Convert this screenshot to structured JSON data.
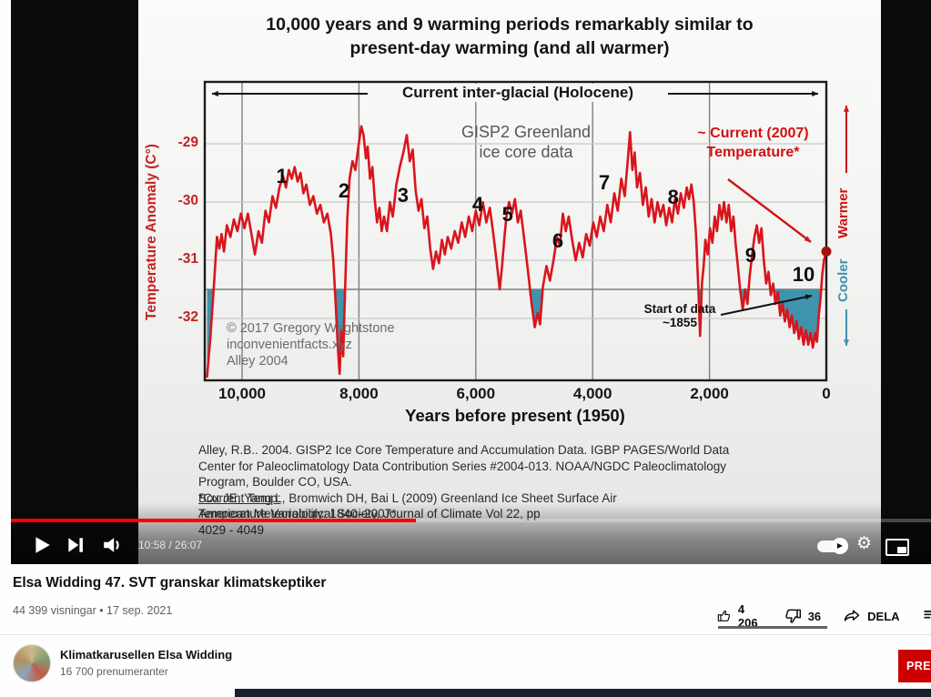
{
  "player": {
    "time_display": "10:58 / 26:07",
    "progress_percent": 44,
    "autoplay_on": true
  },
  "slide": {
    "title_line1": "10,000 years and 9 warming periods remarkably similar to",
    "title_line2": "present-day warming (and all warmer)",
    "holocene_label": "Current inter-glacial (Holocene)",
    "source_label_line1": "GISP2 Greenland",
    "source_label_line2": "ice core data",
    "current_temp_line1": "~ Current (2007)",
    "current_temp_line2": "Temperature*",
    "warmer_label": "Warmer",
    "cooler_label": "Cooler",
    "start_of_data_line1": "Start of data",
    "start_of_data_line2": "~1855",
    "copyright_lines": [
      "© 2017 Gregory Wrightstone",
      "inconvenientfacts.xyz",
      "Alley 2004"
    ],
    "citation_lines": [
      {
        "u": "",
        "t": "Alley, R.B.. 2004. GISP2 Ice Core Temperature and Accumulation Data. IGBP PAGES/World Data"
      },
      {
        "u": "",
        "t": "Center for Paleoclimatology Data Contribution Series #2004-013. NOAA/NGDC Paleoclimatology"
      },
      {
        "u": "",
        "t": "Program, Boulder CO, USA."
      },
      {
        "u": "*Current Temp:",
        "t": " Box JE, Yang L, Bromwich DH, Bai L (2009) Greenland Ice Sheet Surface Air"
      },
      {
        "u": "Temperature Variability: 1840–2007*.",
        "t": " American Meteorological Society, Journal of Climate Vol 22, pp"
      },
      {
        "u": "",
        "t": "4029 - 4049"
      }
    ]
  },
  "chart_data": {
    "type": "line",
    "title": "GISP2 Greenland ice core temperature — last 10,000 years (Holocene)",
    "xlabel": "Years before present (1950)",
    "ylabel": "Temperature Anomaly (C°)",
    "x_range": [
      10650,
      0
    ],
    "y_range": [
      -33.1,
      -27.9
    ],
    "grid": true,
    "x_ticks": [
      {
        "label": "10,000",
        "value": 10000
      },
      {
        "label": "8,000",
        "value": 8000
      },
      {
        "label": "6,000",
        "value": 6000
      },
      {
        "label": "4,000",
        "value": 4000
      },
      {
        "label": "2,000",
        "value": 2000
      },
      {
        "label": "0",
        "value": 0
      }
    ],
    "y_ticks": [
      {
        "label": "-29",
        "value": -29
      },
      {
        "label": "-30",
        "value": -30
      },
      {
        "label": "-31",
        "value": -31
      },
      {
        "label": "-32",
        "value": -32
      }
    ],
    "reference_line_temp": -31.5,
    "below_reference_fill_color": "#3f93ad",
    "current_marker": {
      "year": 0,
      "temp": -30.85,
      "label": "~ Current (2007) Temperature*"
    },
    "start_of_data_year": 95,
    "peak_labels": [
      {
        "label": "1",
        "year": 9320,
        "temp": -29.6
      },
      {
        "label": "2",
        "year": 8255,
        "temp": -29.85
      },
      {
        "label": "3",
        "year": 7245,
        "temp": -29.92
      },
      {
        "label": "4",
        "year": 5965,
        "temp": -30.08
      },
      {
        "label": "5",
        "year": 5455,
        "temp": -30.25
      },
      {
        "label": "6",
        "year": 4595,
        "temp": -30.7
      },
      {
        "label": "7",
        "year": 3800,
        "temp": -29.7
      },
      {
        "label": "8",
        "year": 2620,
        "temp": -29.95
      },
      {
        "label": "9",
        "year": 1295,
        "temp": -30.95
      },
      {
        "label": "10",
        "year": 390,
        "temp": -31.28
      }
    ],
    "series": [
      {
        "name": "GISP2 temperature",
        "color": "#d9151b",
        "points": [
          [
            10600,
            -33.0
          ],
          [
            10540,
            -32.3
          ],
          [
            10480,
            -31.4
          ],
          [
            10430,
            -30.6
          ],
          [
            10390,
            -30.8
          ],
          [
            10350,
            -30.55
          ],
          [
            10310,
            -30.85
          ],
          [
            10260,
            -30.4
          ],
          [
            10200,
            -30.6
          ],
          [
            10140,
            -30.3
          ],
          [
            10080,
            -30.5
          ],
          [
            10020,
            -30.2
          ],
          [
            9960,
            -30.45
          ],
          [
            9900,
            -30.2
          ],
          [
            9840,
            -30.55
          ],
          [
            9780,
            -30.9
          ],
          [
            9720,
            -30.5
          ],
          [
            9660,
            -30.7
          ],
          [
            9600,
            -30.15
          ],
          [
            9540,
            -30.35
          ],
          [
            9480,
            -29.9
          ],
          [
            9420,
            -30.1
          ],
          [
            9360,
            -29.75
          ],
          [
            9300,
            -29.55
          ],
          [
            9250,
            -29.75
          ],
          [
            9200,
            -29.45
          ],
          [
            9150,
            -29.6
          ],
          [
            9100,
            -29.4
          ],
          [
            9050,
            -29.65
          ],
          [
            9000,
            -29.5
          ],
          [
            8950,
            -29.85
          ],
          [
            8900,
            -29.7
          ],
          [
            8840,
            -30.05
          ],
          [
            8780,
            -29.9
          ],
          [
            8720,
            -30.2
          ],
          [
            8660,
            -30.05
          ],
          [
            8600,
            -30.35
          ],
          [
            8540,
            -30.2
          ],
          [
            8480,
            -30.55
          ],
          [
            8440,
            -31.0
          ],
          [
            8400,
            -31.7
          ],
          [
            8360,
            -32.5
          ],
          [
            8330,
            -32.95
          ],
          [
            8300,
            -32.2
          ],
          [
            8270,
            -32.65
          ],
          [
            8240,
            -31.6
          ],
          [
            8200,
            -30.3
          ],
          [
            8160,
            -29.6
          ],
          [
            8110,
            -29.3
          ],
          [
            8060,
            -29.45
          ],
          [
            8010,
            -29.05
          ],
          [
            7960,
            -28.7
          ],
          [
            7920,
            -28.85
          ],
          [
            7880,
            -29.25
          ],
          [
            7850,
            -29.05
          ],
          [
            7810,
            -29.6
          ],
          [
            7770,
            -29.4
          ],
          [
            7730,
            -29.95
          ],
          [
            7690,
            -30.35
          ],
          [
            7650,
            -30.1
          ],
          [
            7610,
            -30.5
          ],
          [
            7570,
            -30.25
          ],
          [
            7520,
            -30.5
          ],
          [
            7470,
            -30.0
          ],
          [
            7420,
            -30.25
          ],
          [
            7360,
            -29.7
          ],
          [
            7300,
            -29.4
          ],
          [
            7240,
            -29.15
          ],
          [
            7180,
            -28.85
          ],
          [
            7130,
            -29.3
          ],
          [
            7080,
            -29.1
          ],
          [
            7030,
            -29.8
          ],
          [
            6980,
            -30.15
          ],
          [
            6930,
            -29.95
          ],
          [
            6880,
            -30.45
          ],
          [
            6830,
            -30.25
          ],
          [
            6780,
            -30.8
          ],
          [
            6730,
            -31.15
          ],
          [
            6680,
            -30.85
          ],
          [
            6630,
            -31.05
          ],
          [
            6580,
            -30.65
          ],
          [
            6530,
            -30.9
          ],
          [
            6480,
            -30.6
          ],
          [
            6420,
            -30.8
          ],
          [
            6360,
            -30.5
          ],
          [
            6300,
            -30.7
          ],
          [
            6240,
            -30.35
          ],
          [
            6180,
            -30.6
          ],
          [
            6120,
            -30.25
          ],
          [
            6060,
            -30.5
          ],
          [
            6000,
            -30.15
          ],
          [
            5940,
            -30.4
          ],
          [
            5880,
            -30.0
          ],
          [
            5820,
            -30.35
          ],
          [
            5760,
            -30.1
          ],
          [
            5700,
            -30.55
          ],
          [
            5640,
            -31.05
          ],
          [
            5590,
            -31.5
          ],
          [
            5550,
            -31.1
          ],
          [
            5510,
            -30.6
          ],
          [
            5470,
            -30.2
          ],
          [
            5430,
            -30.0
          ],
          [
            5380,
            -30.2
          ],
          [
            5330,
            -29.95
          ],
          [
            5280,
            -30.35
          ],
          [
            5230,
            -30.15
          ],
          [
            5170,
            -30.65
          ],
          [
            5110,
            -31.15
          ],
          [
            5050,
            -31.7
          ],
          [
            4990,
            -32.15
          ],
          [
            4940,
            -31.9
          ],
          [
            4900,
            -32.1
          ],
          [
            4850,
            -31.45
          ],
          [
            4790,
            -31.1
          ],
          [
            4730,
            -31.35
          ],
          [
            4670,
            -31.0
          ],
          [
            4610,
            -30.6
          ],
          [
            4560,
            -30.75
          ],
          [
            4510,
            -30.2
          ],
          [
            4460,
            -30.5
          ],
          [
            4410,
            -30.25
          ],
          [
            4350,
            -30.65
          ],
          [
            4290,
            -31.0
          ],
          [
            4230,
            -30.7
          ],
          [
            4170,
            -30.95
          ],
          [
            4110,
            -30.55
          ],
          [
            4050,
            -30.75
          ],
          [
            3990,
            -30.35
          ],
          [
            3930,
            -30.6
          ],
          [
            3870,
            -30.25
          ],
          [
            3810,
            -30.5
          ],
          [
            3750,
            -30.05
          ],
          [
            3690,
            -30.35
          ],
          [
            3630,
            -29.85
          ],
          [
            3570,
            -30.15
          ],
          [
            3510,
            -29.6
          ],
          [
            3450,
            -29.9
          ],
          [
            3400,
            -29.3
          ],
          [
            3360,
            -28.8
          ],
          [
            3320,
            -29.45
          ],
          [
            3280,
            -29.15
          ],
          [
            3240,
            -29.75
          ],
          [
            3190,
            -29.5
          ],
          [
            3140,
            -30.05
          ],
          [
            3090,
            -29.75
          ],
          [
            3040,
            -30.25
          ],
          [
            2990,
            -29.95
          ],
          [
            2940,
            -30.35
          ],
          [
            2890,
            -30.0
          ],
          [
            2840,
            -30.25
          ],
          [
            2790,
            -30.05
          ],
          [
            2740,
            -30.4
          ],
          [
            2690,
            -30.1
          ],
          [
            2640,
            -30.35
          ],
          [
            2590,
            -29.95
          ],
          [
            2540,
            -30.2
          ],
          [
            2490,
            -29.85
          ],
          [
            2440,
            -30.1
          ],
          [
            2390,
            -29.75
          ],
          [
            2350,
            -29.95
          ],
          [
            2310,
            -29.7
          ],
          [
            2270,
            -30.0
          ],
          [
            2230,
            -30.55
          ],
          [
            2190,
            -31.5
          ],
          [
            2160,
            -32.3
          ],
          [
            2130,
            -31.4
          ],
          [
            2100,
            -31.1
          ],
          [
            2070,
            -30.65
          ],
          [
            2030,
            -30.9
          ],
          [
            1990,
            -30.45
          ],
          [
            1950,
            -30.7
          ],
          [
            1910,
            -30.25
          ],
          [
            1870,
            -30.5
          ],
          [
            1830,
            -30.05
          ],
          [
            1790,
            -30.3
          ],
          [
            1750,
            -30.0
          ],
          [
            1710,
            -30.35
          ],
          [
            1670,
            -30.05
          ],
          [
            1630,
            -30.5
          ],
          [
            1590,
            -30.25
          ],
          [
            1550,
            -30.75
          ],
          [
            1510,
            -31.15
          ],
          [
            1470,
            -31.55
          ],
          [
            1430,
            -31.85
          ],
          [
            1390,
            -31.5
          ],
          [
            1350,
            -31.75
          ],
          [
            1310,
            -31.25
          ],
          [
            1270,
            -30.9
          ],
          [
            1230,
            -30.6
          ],
          [
            1190,
            -30.4
          ],
          [
            1150,
            -30.7
          ],
          [
            1110,
            -30.45
          ],
          [
            1070,
            -31.0
          ],
          [
            1030,
            -31.4
          ],
          [
            990,
            -31.2
          ],
          [
            950,
            -31.6
          ],
          [
            910,
            -31.4
          ],
          [
            870,
            -31.75
          ],
          [
            830,
            -31.55
          ],
          [
            790,
            -31.95
          ],
          [
            750,
            -31.75
          ],
          [
            710,
            -32.05
          ],
          [
            670,
            -31.85
          ],
          [
            630,
            -32.15
          ],
          [
            590,
            -31.95
          ],
          [
            550,
            -32.25
          ],
          [
            510,
            -32.05
          ],
          [
            470,
            -32.35
          ],
          [
            430,
            -32.15
          ],
          [
            390,
            -32.45
          ],
          [
            350,
            -32.2
          ],
          [
            310,
            -32.45
          ],
          [
            270,
            -32.25
          ],
          [
            230,
            -32.5
          ],
          [
            190,
            -32.25
          ],
          [
            160,
            -32.4
          ],
          [
            130,
            -31.95
          ],
          [
            100,
            -31.65
          ],
          [
            70,
            -31.25
          ],
          [
            40,
            -31.0
          ],
          [
            0,
            -30.85
          ]
        ]
      }
    ]
  },
  "below": {
    "video_title": "Elsa Widding 47. SVT granskar klimatskeptiker",
    "video_meta": "44 399 visningar • 17 sep. 2021",
    "actions": {
      "like_count": "4 206",
      "dislike_count": "36",
      "share_label": "DELA"
    },
    "channel": {
      "name": "Klimatkarusellen Elsa Widding",
      "subscribers": "16 700 prenumeranter",
      "subscribe_label": "PRE"
    }
  }
}
